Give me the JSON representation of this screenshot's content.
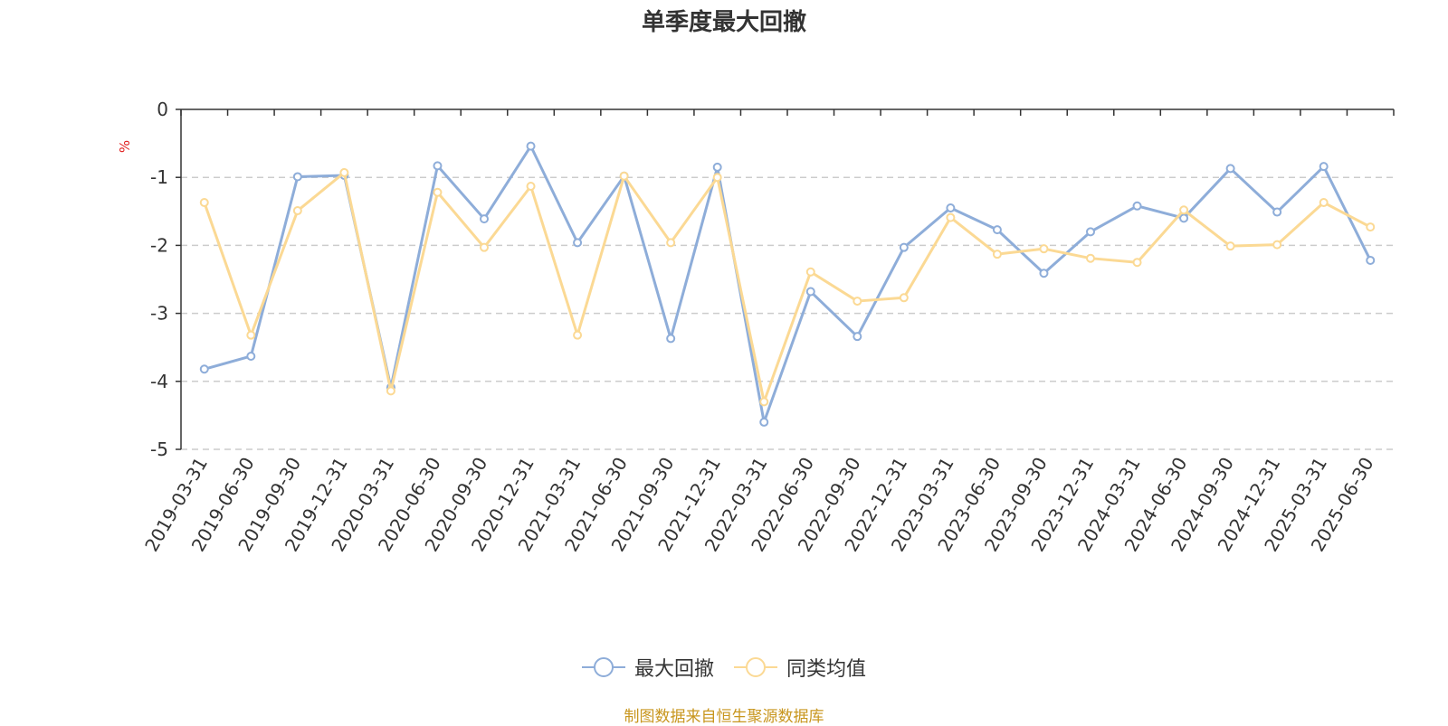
{
  "title": "单季度最大回撤",
  "source_note": "制图数据来自恒生聚源数据库",
  "colors": {
    "series_1": "#8eadd9",
    "series_2": "#fbd994",
    "axis": "#333333",
    "grid": "#cccccc",
    "unit": "#e02020"
  },
  "chart_data": {
    "type": "line",
    "ylabel": "%",
    "ylim": [
      -5,
      0
    ],
    "yticks": [
      0,
      -1,
      -2,
      -3,
      -4,
      -5
    ],
    "grid": true,
    "legend_position": "bottom-center",
    "categories": [
      "2019-03-31",
      "2019-06-30",
      "2019-09-30",
      "2019-12-31",
      "2020-03-31",
      "2020-06-30",
      "2020-09-30",
      "2020-12-31",
      "2021-03-31",
      "2021-06-30",
      "2021-09-30",
      "2021-12-31",
      "2022-03-31",
      "2022-06-30",
      "2022-09-30",
      "2022-12-31",
      "2023-03-31",
      "2023-06-30",
      "2023-09-30",
      "2023-12-31",
      "2024-03-31",
      "2024-06-30",
      "2024-09-30",
      "2024-12-31",
      "2025-03-31",
      "2025-06-30"
    ],
    "series": [
      {
        "name": "最大回撤",
        "values": [
          -3.82,
          -3.63,
          -0.99,
          -0.97,
          -4.09,
          -0.83,
          -1.61,
          -0.54,
          -1.96,
          -0.98,
          -3.37,
          -0.85,
          -4.6,
          -2.68,
          -3.34,
          -2.03,
          -1.45,
          -1.77,
          -2.41,
          -1.8,
          -1.42,
          -1.6,
          -0.87,
          -1.51,
          -0.84,
          -2.22
        ]
      },
      {
        "name": "同类均值",
        "values": [
          -1.37,
          -3.32,
          -1.49,
          -0.93,
          -4.14,
          -1.22,
          -2.03,
          -1.13,
          -3.32,
          -0.98,
          -1.96,
          -1.0,
          -4.3,
          -2.39,
          -2.82,
          -2.77,
          -1.59,
          -2.13,
          -2.05,
          -2.19,
          -2.25,
          -1.48,
          -2.01,
          -1.99,
          -1.37,
          -1.73
        ]
      }
    ]
  }
}
